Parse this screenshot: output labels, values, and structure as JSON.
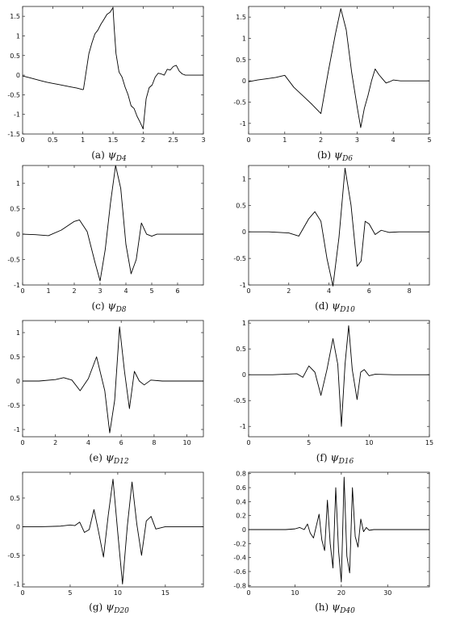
{
  "figure": {
    "panels": [
      {
        "id": "a",
        "caption_label": "(a)",
        "symbol": "ψ",
        "subscript": "D4"
      },
      {
        "id": "b",
        "caption_label": "(b)",
        "symbol": "ψ",
        "subscript": "D6"
      },
      {
        "id": "c",
        "caption_label": "(c)",
        "symbol": "ψ",
        "subscript": "D8"
      },
      {
        "id": "d",
        "caption_label": "(d)",
        "symbol": "ψ",
        "subscript": "D10"
      },
      {
        "id": "e",
        "caption_label": "(e)",
        "symbol": "ψ",
        "subscript": "D12"
      },
      {
        "id": "f",
        "caption_label": "(f)",
        "symbol": "ψ",
        "subscript": "D16"
      },
      {
        "id": "g",
        "caption_label": "(g)",
        "symbol": "ψ",
        "subscript": "D20"
      },
      {
        "id": "h",
        "caption_label": "(h)",
        "symbol": "ψ",
        "subscript": "D40"
      }
    ]
  },
  "chart_data": [
    {
      "type": "line",
      "title": "(a) ψD4",
      "xlim": [
        0,
        3
      ],
      "ylim": [
        -1.5,
        1.75
      ],
      "xticks": [
        0,
        0.5,
        1,
        1.5,
        2,
        2.5,
        3
      ],
      "xtick_labels": [
        "0",
        "0.5",
        "1",
        "1.5",
        "2",
        "2.5",
        "3"
      ],
      "yticks": [
        -1.5,
        -1,
        -0.5,
        0,
        0.5,
        1,
        1.5
      ],
      "ytick_labels": [
        "-1.5",
        "-1",
        "-0.5",
        "0",
        "0.5",
        "1",
        "1.5"
      ],
      "series": [
        {
          "x": [
            0,
            0.1,
            0.2,
            0.3,
            0.4,
            0.5,
            0.6,
            0.7,
            0.8,
            0.9,
            1.0,
            1.01,
            1.1,
            1.15,
            1.2,
            1.25,
            1.3,
            1.35,
            1.4,
            1.45,
            1.5,
            1.52,
            1.55,
            1.6,
            1.65,
            1.7,
            1.75,
            1.8,
            1.85,
            1.9,
            1.95,
            2.0,
            2.02,
            2.05,
            2.1,
            2.15,
            2.2,
            2.25,
            2.3,
            2.35,
            2.4,
            2.45,
            2.5,
            2.55,
            2.6,
            2.65,
            2.7,
            2.8,
            2.9,
            3.0
          ],
          "y": [
            -0.02,
            -0.06,
            -0.1,
            -0.14,
            -0.18,
            -0.21,
            -0.24,
            -0.27,
            -0.3,
            -0.33,
            -0.37,
            -0.36,
            0.55,
            0.82,
            1.05,
            1.15,
            1.3,
            1.42,
            1.55,
            1.6,
            1.72,
            1.2,
            0.55,
            0.08,
            -0.05,
            -0.3,
            -0.5,
            -0.78,
            -0.85,
            -1.05,
            -1.2,
            -1.37,
            -1.05,
            -0.6,
            -0.32,
            -0.25,
            -0.05,
            0.05,
            0.03,
            0.0,
            0.15,
            0.13,
            0.22,
            0.25,
            0.1,
            0.03,
            0.0,
            0.0,
            0.0,
            0.0
          ]
        }
      ]
    },
    {
      "type": "line",
      "title": "(b) ψD6",
      "xlim": [
        0,
        5
      ],
      "ylim": [
        -1.25,
        1.75
      ],
      "xticks": [
        0,
        1,
        2,
        3,
        4,
        5
      ],
      "xtick_labels": [
        "0",
        "1",
        "2",
        "3",
        "4",
        "5"
      ],
      "yticks": [
        -1,
        -0.5,
        0,
        0.5,
        1,
        1.5
      ],
      "ytick_labels": [
        "-1",
        "-0.5",
        "0",
        "0.5",
        "1",
        "1.5"
      ],
      "series": [
        {
          "x": [
            0,
            0.25,
            0.5,
            0.75,
            1.0,
            1.25,
            1.5,
            1.75,
            2.0,
            2.2,
            2.4,
            2.55,
            2.7,
            2.85,
            3.0,
            3.1,
            3.2,
            3.3,
            3.4,
            3.5,
            3.6,
            3.7,
            3.8,
            3.9,
            4.0,
            4.2,
            4.5,
            5.0
          ],
          "y": [
            -0.02,
            0.02,
            0.05,
            0.08,
            0.13,
            -0.15,
            -0.35,
            -0.55,
            -0.77,
            0.2,
            1.1,
            1.7,
            1.2,
            0.2,
            -0.6,
            -1.1,
            -0.65,
            -0.35,
            0.0,
            0.28,
            0.15,
            0.05,
            -0.05,
            -0.02,
            0.02,
            0.0,
            0.0,
            0.0
          ]
        }
      ]
    },
    {
      "type": "line",
      "title": "(c) ψD8",
      "xlim": [
        0,
        7
      ],
      "ylim": [
        -1.0,
        1.35
      ],
      "xticks": [
        0,
        1,
        2,
        3,
        4,
        5,
        6
      ],
      "xtick_labels": [
        "0",
        "1",
        "2",
        "3",
        "4",
        "5",
        "6"
      ],
      "yticks": [
        -1,
        -0.5,
        0,
        0.5,
        1
      ],
      "ytick_labels": [
        "-1",
        "-0.5",
        "0",
        "0.5",
        "1"
      ],
      "series": [
        {
          "x": [
            0,
            0.5,
            1.0,
            1.5,
            2.0,
            2.2,
            2.5,
            2.8,
            3.0,
            3.2,
            3.4,
            3.6,
            3.8,
            4.0,
            4.2,
            4.4,
            4.6,
            4.8,
            5.0,
            5.2,
            5.5,
            6.0,
            7.0
          ],
          "y": [
            0.0,
            -0.01,
            -0.03,
            0.08,
            0.25,
            0.28,
            0.05,
            -0.55,
            -0.92,
            -0.3,
            0.6,
            1.35,
            0.9,
            -0.2,
            -0.78,
            -0.5,
            0.22,
            0.0,
            -0.04,
            0.0,
            0.0,
            0.0,
            0.0
          ]
        }
      ]
    },
    {
      "type": "line",
      "title": "(d) ψD10",
      "xlim": [
        0,
        9
      ],
      "ylim": [
        -1.0,
        1.25
      ],
      "xticks": [
        0,
        2,
        4,
        6,
        8
      ],
      "xtick_labels": [
        "0",
        "2",
        "4",
        "6",
        "8"
      ],
      "yticks": [
        -1,
        -0.5,
        0,
        0.5,
        1
      ],
      "ytick_labels": [
        "-1",
        "-0.5",
        "0",
        "0.5",
        "1"
      ],
      "series": [
        {
          "x": [
            0,
            1.0,
            2.0,
            2.5,
            3.0,
            3.3,
            3.6,
            3.9,
            4.2,
            4.5,
            4.8,
            5.1,
            5.4,
            5.6,
            5.8,
            6.0,
            6.3,
            6.6,
            7.0,
            7.5,
            9.0
          ],
          "y": [
            0.0,
            0.0,
            -0.02,
            -0.08,
            0.25,
            0.38,
            0.2,
            -0.5,
            -1.02,
            -0.1,
            1.2,
            0.5,
            -0.65,
            -0.55,
            0.2,
            0.15,
            -0.05,
            0.03,
            -0.01,
            0.0,
            0.0
          ]
        }
      ]
    },
    {
      "type": "line",
      "title": "(e) ψD12",
      "xlim": [
        0,
        11
      ],
      "ylim": [
        -1.15,
        1.25
      ],
      "xticks": [
        0,
        2,
        4,
        6,
        8,
        10
      ],
      "xtick_labels": [
        "0",
        "2",
        "4",
        "6",
        "8",
        "10"
      ],
      "yticks": [
        -1,
        -0.5,
        0,
        0.5,
        1
      ],
      "ytick_labels": [
        "-1",
        "-0.5",
        "0",
        "0.5",
        "1"
      ],
      "series": [
        {
          "x": [
            0,
            1.0,
            2.0,
            2.5,
            3.0,
            3.5,
            4.0,
            4.5,
            5.0,
            5.3,
            5.6,
            5.9,
            6.2,
            6.5,
            6.8,
            7.1,
            7.4,
            7.8,
            8.5,
            11.0
          ],
          "y": [
            0.0,
            0.0,
            0.03,
            0.07,
            0.02,
            -0.2,
            0.05,
            0.5,
            -0.2,
            -1.07,
            -0.4,
            1.12,
            0.2,
            -0.57,
            0.2,
            0.0,
            -0.08,
            0.02,
            0.0,
            0.0
          ]
        }
      ]
    },
    {
      "type": "line",
      "title": "(f) ψD16",
      "xlim": [
        0,
        15
      ],
      "ylim": [
        -1.2,
        1.05
      ],
      "xticks": [
        0,
        5,
        10,
        15
      ],
      "xtick_labels": [
        "0",
        "5",
        "10",
        "15"
      ],
      "yticks": [
        -1,
        -0.5,
        0,
        0.5,
        1
      ],
      "ytick_labels": [
        "-1",
        "-0.5",
        "0",
        "0.5",
        "1"
      ],
      "series": [
        {
          "x": [
            0,
            2.0,
            4.0,
            4.5,
            5.0,
            5.5,
            6.0,
            6.5,
            7.0,
            7.4,
            7.7,
            8.0,
            8.3,
            8.6,
            9.0,
            9.3,
            9.6,
            10.0,
            10.5,
            12.0,
            15.0
          ],
          "y": [
            0.0,
            0.0,
            0.02,
            -0.05,
            0.17,
            0.05,
            -0.4,
            0.1,
            0.7,
            0.2,
            -1.0,
            0.2,
            0.95,
            0.1,
            -0.48,
            0.05,
            0.1,
            -0.02,
            0.01,
            0.0,
            0.0
          ]
        }
      ]
    },
    {
      "type": "line",
      "title": "(g) ψD20",
      "xlim": [
        0,
        19
      ],
      "ylim": [
        -1.05,
        0.95
      ],
      "xticks": [
        0,
        5,
        10,
        15
      ],
      "xtick_labels": [
        "0",
        "5",
        "10",
        "15"
      ],
      "yticks": [
        -1,
        -0.5,
        0,
        0.5
      ],
      "ytick_labels": [
        "-1",
        "-0.5",
        "0",
        "0.5"
      ],
      "series": [
        {
          "x": [
            0,
            2.0,
            4.0,
            5.0,
            5.5,
            6.0,
            6.5,
            7.0,
            7.5,
            8.0,
            8.5,
            9.0,
            9.5,
            10.0,
            10.5,
            11.0,
            11.5,
            12.0,
            12.5,
            13.0,
            13.5,
            14.0,
            15.0,
            19.0
          ],
          "y": [
            0.0,
            0.0,
            0.01,
            0.03,
            0.02,
            0.08,
            -0.1,
            -0.05,
            0.3,
            -0.1,
            -0.53,
            0.2,
            0.83,
            -0.1,
            -1.0,
            0.0,
            0.78,
            0.05,
            -0.5,
            0.1,
            0.18,
            -0.04,
            0.0,
            0.0
          ]
        }
      ]
    },
    {
      "type": "line",
      "title": "(h) ψD40",
      "xlim": [
        0,
        39
      ],
      "ylim": [
        -0.82,
        0.82
      ],
      "xticks": [
        0,
        10,
        20,
        30
      ],
      "xtick_labels": [
        "0",
        "10",
        "20",
        "30"
      ],
      "yticks": [
        -0.8,
        -0.6,
        -0.4,
        -0.2,
        0,
        0.2,
        0.4,
        0.6,
        0.8
      ],
      "ytick_labels": [
        "-0.8",
        "-0.6",
        "-0.4",
        "-0.2",
        "0",
        "0.2",
        "0.4",
        "0.6",
        "0.8"
      ],
      "series": [
        {
          "x": [
            0,
            8.0,
            10.0,
            11.0,
            12.0,
            12.7,
            13.3,
            14.0,
            14.6,
            15.2,
            15.8,
            16.4,
            17.0,
            17.6,
            18.2,
            18.8,
            19.4,
            20.0,
            20.6,
            21.2,
            21.8,
            22.4,
            23.0,
            23.6,
            24.2,
            24.8,
            25.4,
            26.0,
            27.0,
            39.0
          ],
          "y": [
            0.0,
            0.0,
            0.01,
            0.03,
            0.0,
            0.08,
            -0.05,
            -0.12,
            0.05,
            0.22,
            -0.15,
            -0.3,
            0.42,
            -0.2,
            -0.55,
            0.6,
            -0.3,
            -0.75,
            0.75,
            -0.38,
            -0.62,
            0.6,
            -0.1,
            -0.25,
            0.15,
            -0.03,
            0.03,
            -0.01,
            0.0,
            0.0
          ]
        }
      ]
    }
  ]
}
